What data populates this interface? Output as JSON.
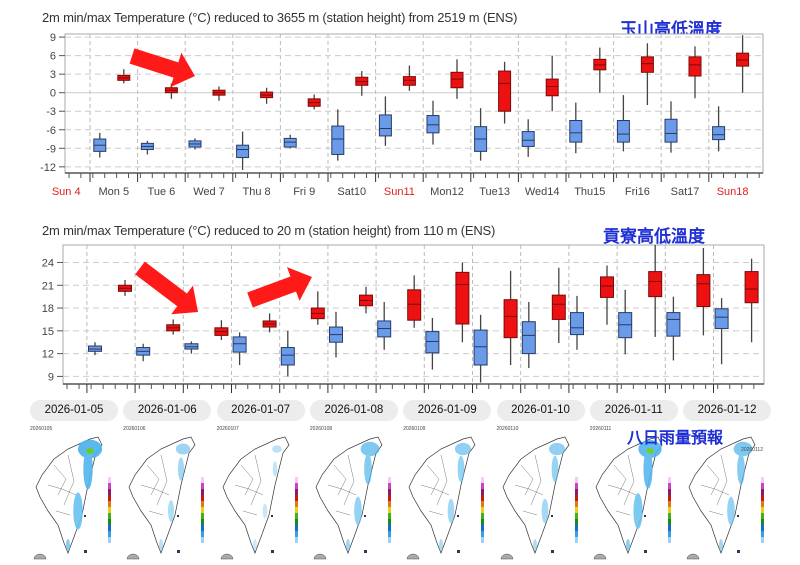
{
  "colors": {
    "min_series": "#6a9be8",
    "max_series": "#ee1111",
    "annotation": "#1f2fd6",
    "arrow": "#ff1a1a"
  },
  "annotations": {
    "top_label": "玉山高低溫度",
    "bottom_label": "貢寮高低溫度",
    "rain_label": "八日雨量預報"
  },
  "chart_data": [
    {
      "type": "boxplot",
      "title": "2m min/max Temperature (°C) reduced to 3655 m (station height) from 2519 m (ENS)",
      "ylim": [
        -13,
        9.5
      ],
      "yticks": [
        9,
        6,
        3,
        0,
        -3,
        -6,
        -9,
        -12
      ],
      "categories": [
        "Sun 4",
        "Mon 5",
        "Tue 6",
        "Wed 7",
        "Thu 8",
        "Fri 9",
        "Sat10",
        "Sun11",
        "Mon12",
        "Tue13",
        "Wed14",
        "Thu15",
        "Fri16",
        "Sat17",
        "Sun18"
      ],
      "weekend": [
        true,
        false,
        false,
        false,
        false,
        false,
        false,
        true,
        false,
        false,
        false,
        false,
        false,
        false,
        true
      ],
      "grid": true,
      "box_format": [
        "min",
        "q1",
        "median",
        "q3",
        "max"
      ],
      "series": [
        {
          "name": "min",
          "values": [
            null,
            [
              -10.5,
              -9.5,
              -8.5,
              -7.5,
              -6.5
            ],
            [
              -10,
              -9.2,
              -8.7,
              -8.2,
              -7.8
            ],
            [
              -9.2,
              -8.8,
              -8.3,
              -7.8,
              -7.4
            ],
            [
              -12.5,
              -10.5,
              -9.2,
              -8.5,
              -6.3
            ],
            [
              -9,
              -8.8,
              -8,
              -7.4,
              -6.8
            ],
            [
              -11,
              -10,
              -7.5,
              -5.4,
              -2.7
            ],
            [
              -8.6,
              -7,
              -5.8,
              -3.6,
              -0.6
            ],
            [
              -8.4,
              -6.5,
              -5.2,
              -3.7,
              -1.3
            ],
            [
              -11,
              -9.5,
              -7.5,
              -5.5,
              -2.5
            ],
            [
              -10.4,
              -8.7,
              -7.7,
              -6.3,
              -4.3
            ],
            [
              -9.8,
              -8,
              -6.5,
              -4.5,
              -1.6
            ],
            [
              -9.5,
              -8,
              -6.7,
              -4.5,
              -0.4
            ],
            [
              -9.7,
              -8,
              -6.6,
              -4.3,
              -1.4
            ],
            [
              -9.5,
              -7.6,
              -6.8,
              -5.5,
              -2.2
            ]
          ]
        },
        {
          "name": "max",
          "values": [
            null,
            [
              1.5,
              2,
              2.4,
              2.8,
              3.8
            ],
            [
              -1,
              0,
              0.4,
              0.8,
              1.5
            ],
            [
              -1.3,
              -0.4,
              0,
              0.4,
              1
            ],
            [
              -1.8,
              -0.8,
              -0.4,
              0.1,
              0.8
            ],
            [
              -2.7,
              -2.2,
              -1.6,
              -1,
              -0.3
            ],
            [
              -0.5,
              1.2,
              1.8,
              2.5,
              3.5
            ],
            [
              0.3,
              1.2,
              2,
              2.6,
              4.4
            ],
            [
              -1,
              0.8,
              2.2,
              3.3,
              5.4
            ],
            [
              -5,
              -3,
              1.5,
              3.5,
              5
            ],
            [
              -3,
              -0.5,
              1,
              2.2,
              6
            ],
            [
              0,
              3.7,
              4.5,
              5.4,
              7.3
            ],
            [
              -2,
              3.3,
              4.7,
              5.8,
              8
            ],
            [
              -0.9,
              2.7,
              4.5,
              5.8,
              7.5
            ],
            [
              0,
              4.3,
              5.3,
              6.4,
              9.3
            ]
          ]
        }
      ]
    },
    {
      "type": "boxplot",
      "title": "2m min/max Temperature (°C) reduced to 20 m (station height) from 110 m (ENS)",
      "ylim": [
        8,
        26.3
      ],
      "yticks": [
        24,
        21,
        18,
        15,
        12,
        9
      ],
      "grid": true,
      "box_format": [
        "min",
        "q1",
        "median",
        "q3",
        "max"
      ],
      "series": [
        {
          "name": "min",
          "values": [
            null,
            [
              11.8,
              12.3,
              12.6,
              13,
              13.5
            ],
            [
              11,
              11.8,
              12.3,
              12.8,
              13.3
            ],
            [
              12,
              12.6,
              12.9,
              13.3,
              13.6
            ],
            [
              10.5,
              12.2,
              13.3,
              14.2,
              14.8
            ],
            [
              9,
              10.5,
              11.8,
              12.8,
              15
            ],
            [
              11.5,
              13.5,
              14.5,
              15.5,
              17.5
            ],
            [
              12.5,
              14.2,
              15.3,
              16.3,
              18.8
            ],
            [
              9.9,
              12.1,
              13.6,
              14.9,
              16.7
            ],
            [
              8.2,
              10.5,
              12.9,
              15.1,
              17.1
            ],
            [
              10.1,
              12,
              14.4,
              16.2,
              18.8
            ],
            [
              12.5,
              14.5,
              15.4,
              17.4,
              19.6
            ],
            [
              11.9,
              14.1,
              15.8,
              17.4,
              20.4
            ],
            [
              11.1,
              14.3,
              16.5,
              17.4,
              19.5
            ],
            [
              10.6,
              15.3,
              16.8,
              17.9,
              19.3
            ]
          ]
        },
        {
          "name": "max",
          "values": [
            null,
            [
              19.6,
              20.2,
              20.6,
              21,
              21.7
            ],
            [
              14.5,
              15,
              15.4,
              15.8,
              16.5
            ],
            [
              13.8,
              14.4,
              14.9,
              15.4,
              16.4
            ],
            [
              14.8,
              15.5,
              15.9,
              16.3,
              17.3
            ],
            [
              15.8,
              16.6,
              17.3,
              18,
              20.2
            ],
            [
              17.3,
              18.3,
              19,
              19.7,
              20.8
            ],
            [
              15.4,
              16.4,
              18.5,
              20.4,
              22.3
            ],
            [
              13.5,
              15.9,
              21.1,
              22.7,
              24
            ],
            [
              10.5,
              14.1,
              16.9,
              19.1,
              22.9
            ],
            [
              13.4,
              16.5,
              18.5,
              19.7,
              23.3
            ],
            [
              15.8,
              19.4,
              20.9,
              22.1,
              23.6
            ],
            [
              14.2,
              19.5,
              21.5,
              22.8,
              26.3
            ],
            [
              14.4,
              18.2,
              21.2,
              22.4,
              25.9
            ],
            [
              13.5,
              18.7,
              20.5,
              22.8,
              24.5
            ]
          ]
        }
      ]
    }
  ],
  "rain_forecast": {
    "dates": [
      "2026-01-05",
      "2026-01-06",
      "2026-01-07",
      "2026-01-08",
      "2026-01-09",
      "2026-01-10",
      "2026-01-11",
      "2026-01-12"
    ],
    "stamps": [
      "20260105",
      "20260106",
      "20260107",
      "20260108",
      "20260109",
      "20260110",
      "20260111",
      "20260112"
    ],
    "intensity": [
      0.9,
      0.35,
      0.1,
      0.6,
      0.45,
      0.45,
      0.85,
      0.6
    ]
  }
}
